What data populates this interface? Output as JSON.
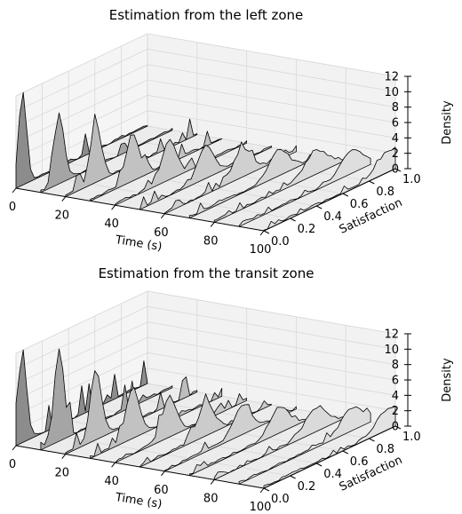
{
  "chart_data": [
    {
      "type": "area",
      "projection": "3d-waterfall",
      "title": "Estimation from the left zone",
      "xlabel": "Time (s)",
      "ylabel": "Satisfaction",
      "zlabel": "Density",
      "xticks": [
        "0",
        "20",
        "40",
        "60",
        "80",
        "100"
      ],
      "yticks": [
        "0.0",
        "0.2",
        "0.4",
        "0.6",
        "0.8",
        "1.0"
      ],
      "zticks": [
        "0",
        "2",
        "4",
        "6",
        "8",
        "10",
        "12"
      ],
      "xlim": [
        0,
        100
      ],
      "ylim": [
        0,
        1
      ],
      "zlim": [
        0,
        12
      ],
      "grid": true,
      "colors": {
        "pane": "#f2f2f2",
        "grid": "#d9d9d9",
        "slice_early": "#8c8c8c",
        "slice_mid": "#bdbdbd",
        "slice_late": "#e3e3e3",
        "edge": "#000000"
      },
      "series": [
        {
          "t": 0,
          "peak_density": 12.0
        },
        {
          "t": 10,
          "peak_density": 9.0
        },
        {
          "t": 20,
          "peak_density": 7.5
        },
        {
          "t": 30,
          "peak_density": 6.0
        },
        {
          "t": 40,
          "peak_density": 5.0
        },
        {
          "t": 50,
          "peak_density": 4.2
        },
        {
          "t": 60,
          "peak_density": 3.6
        },
        {
          "t": 70,
          "peak_density": 3.2
        },
        {
          "t": 80,
          "peak_density": 3.0
        },
        {
          "t": 90,
          "peak_density": 2.8
        },
        {
          "t": 100,
          "peak_density": 2.6
        }
      ]
    },
    {
      "type": "area",
      "projection": "3d-waterfall",
      "title": "Estimation from the transit zone",
      "xlabel": "Time (s)",
      "ylabel": "Satisfaction",
      "zlabel": "Density",
      "xticks": [
        "0",
        "20",
        "40",
        "60",
        "80",
        "100"
      ],
      "yticks": [
        "0.0",
        "0.2",
        "0.4",
        "0.6",
        "0.8",
        "1.0"
      ],
      "zticks": [
        "0",
        "2",
        "4",
        "6",
        "8",
        "10",
        "12"
      ],
      "xlim": [
        0,
        100
      ],
      "ylim": [
        0,
        1
      ],
      "zlim": [
        0,
        12
      ],
      "grid": true,
      "colors": {
        "pane": "#f2f2f2",
        "grid": "#d9d9d9",
        "slice_early": "#8c8c8c",
        "slice_mid": "#bdbdbd",
        "slice_late": "#e3e3e3",
        "edge": "#000000"
      },
      "series": [
        {
          "t": 0,
          "peak_density": 12.0
        },
        {
          "t": 10,
          "peak_density": 12.0
        },
        {
          "t": 20,
          "peak_density": 9.0
        },
        {
          "t": 30,
          "peak_density": 6.5
        },
        {
          "t": 40,
          "peak_density": 5.0
        },
        {
          "t": 50,
          "peak_density": 4.2
        },
        {
          "t": 60,
          "peak_density": 3.6
        },
        {
          "t": 70,
          "peak_density": 3.2
        },
        {
          "t": 80,
          "peak_density": 3.0
        },
        {
          "t": 90,
          "peak_density": 2.8
        },
        {
          "t": 100,
          "peak_density": 2.6
        }
      ]
    }
  ]
}
